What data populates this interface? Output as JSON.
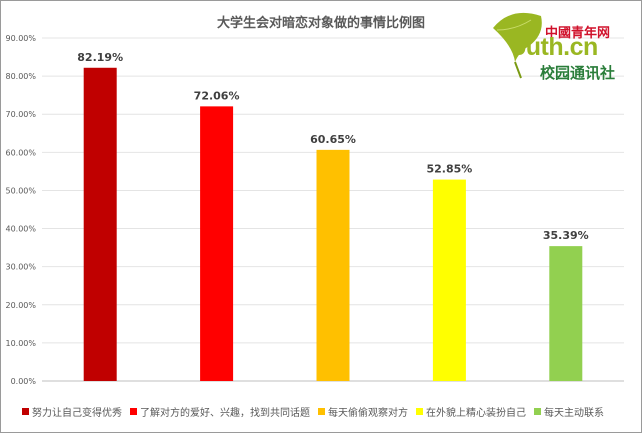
{
  "chart_data": {
    "type": "bar",
    "title": "大学生会对暗恋对象做的事情比例图",
    "categories": [
      "努力让自己变得优秀",
      "了解对方的爱好、兴趣，找到共同话题",
      "每天偷偷观察对方",
      "在外貌上精心装扮自己",
      "每天主动联系"
    ],
    "values": [
      82.19,
      72.06,
      60.65,
      52.85,
      35.39
    ],
    "value_labels": [
      "82.19%",
      "72.06%",
      "60.65%",
      "52.85%",
      "35.39%"
    ],
    "colors": [
      "#c00000",
      "#ff0000",
      "#ffc000",
      "#ffff00",
      "#92d050"
    ],
    "ylim": [
      0,
      90
    ],
    "y_ticks": [
      "0.00%",
      "10.00%",
      "20.00%",
      "30.00%",
      "40.00%",
      "50.00%",
      "60.00%",
      "70.00%",
      "80.00%",
      "90.00%"
    ],
    "xlabel": "",
    "ylabel": "",
    "grid": true,
    "legend_position": "bottom"
  },
  "logo": {
    "top_text": "中國青年网",
    "main_text": "outh.cn",
    "sub_text": "校园通讯社"
  }
}
